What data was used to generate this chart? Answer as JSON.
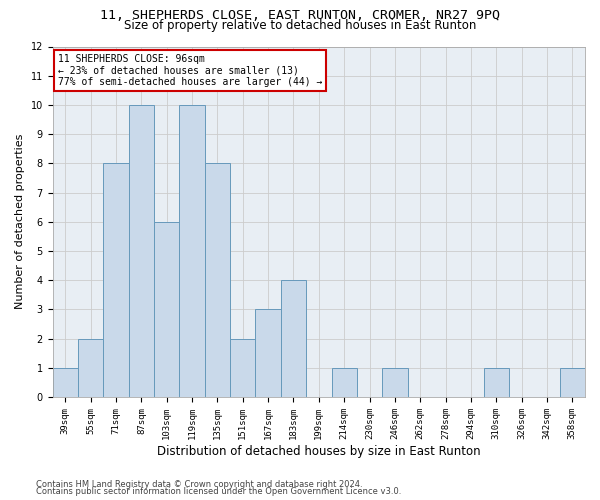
{
  "title_line1": "11, SHEPHERDS CLOSE, EAST RUNTON, CROMER, NR27 9PQ",
  "title_line2": "Size of property relative to detached houses in East Runton",
  "xlabel": "Distribution of detached houses by size in East Runton",
  "ylabel": "Number of detached properties",
  "categories": [
    "39sqm",
    "55sqm",
    "71sqm",
    "87sqm",
    "103sqm",
    "119sqm",
    "135sqm",
    "151sqm",
    "167sqm",
    "183sqm",
    "199sqm",
    "214sqm",
    "230sqm",
    "246sqm",
    "262sqm",
    "278sqm",
    "294sqm",
    "310sqm",
    "326sqm",
    "342sqm",
    "358sqm"
  ],
  "values": [
    1,
    2,
    8,
    10,
    6,
    10,
    8,
    2,
    3,
    4,
    0,
    1,
    0,
    1,
    0,
    0,
    0,
    1,
    0,
    0,
    1
  ],
  "bar_color": "#c9d9ea",
  "bar_edge_color": "#6699bb",
  "annotation_text": "11 SHEPHERDS CLOSE: 96sqm\n← 23% of detached houses are smaller (13)\n77% of semi-detached houses are larger (44) →",
  "annotation_box_color": "white",
  "annotation_box_edge_color": "#cc0000",
  "ylim": [
    0,
    12
  ],
  "yticks": [
    0,
    1,
    2,
    3,
    4,
    5,
    6,
    7,
    8,
    9,
    10,
    11,
    12
  ],
  "grid_color": "#cccccc",
  "background_color": "#e8eef4",
  "footnote_line1": "Contains HM Land Registry data © Crown copyright and database right 2024.",
  "footnote_line2": "Contains public sector information licensed under the Open Government Licence v3.0.",
  "title_fontsize": 9.5,
  "subtitle_fontsize": 8.5,
  "axis_label_fontsize": 8,
  "tick_fontsize": 6.5,
  "annotation_fontsize": 7,
  "footnote_fontsize": 6
}
